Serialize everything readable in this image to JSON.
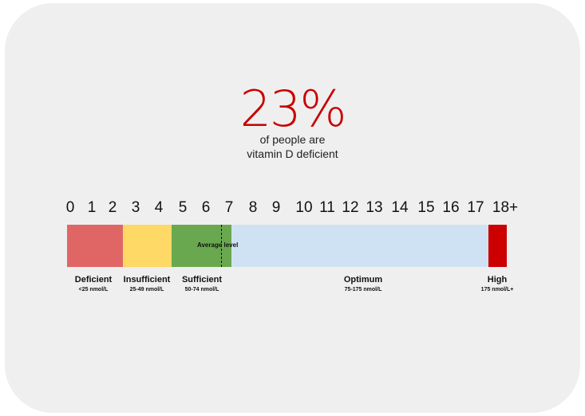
{
  "headline": {
    "value": "23%",
    "color": "#c80000"
  },
  "subline": {
    "line1": "of people are",
    "line2": "vitamin D deficient"
  },
  "scale": {
    "ticks": [
      "0",
      "1",
      "2",
      "3",
      "4",
      "5",
      "6",
      "7",
      "8",
      "9",
      "10",
      "11",
      "12",
      "13",
      "14",
      "15",
      "16",
      "17",
      "18+"
    ],
    "average_label": "Average level"
  },
  "segments": [
    {
      "name": "Deficient",
      "range": "<25 nmol/L",
      "color": "#e06666"
    },
    {
      "name": "Insufficient",
      "range": "25-49 nmol/L",
      "color": "#ffd966"
    },
    {
      "name": "Sufficient",
      "range": "50-74 nmol/L",
      "color": "#6aa84f"
    },
    {
      "name": "Optimum",
      "range": "75-175 nmol/L",
      "color": "#cfe2f3"
    },
    {
      "name": "High",
      "range": "175  nmol/L+",
      "color": "#cc0000"
    }
  ]
}
